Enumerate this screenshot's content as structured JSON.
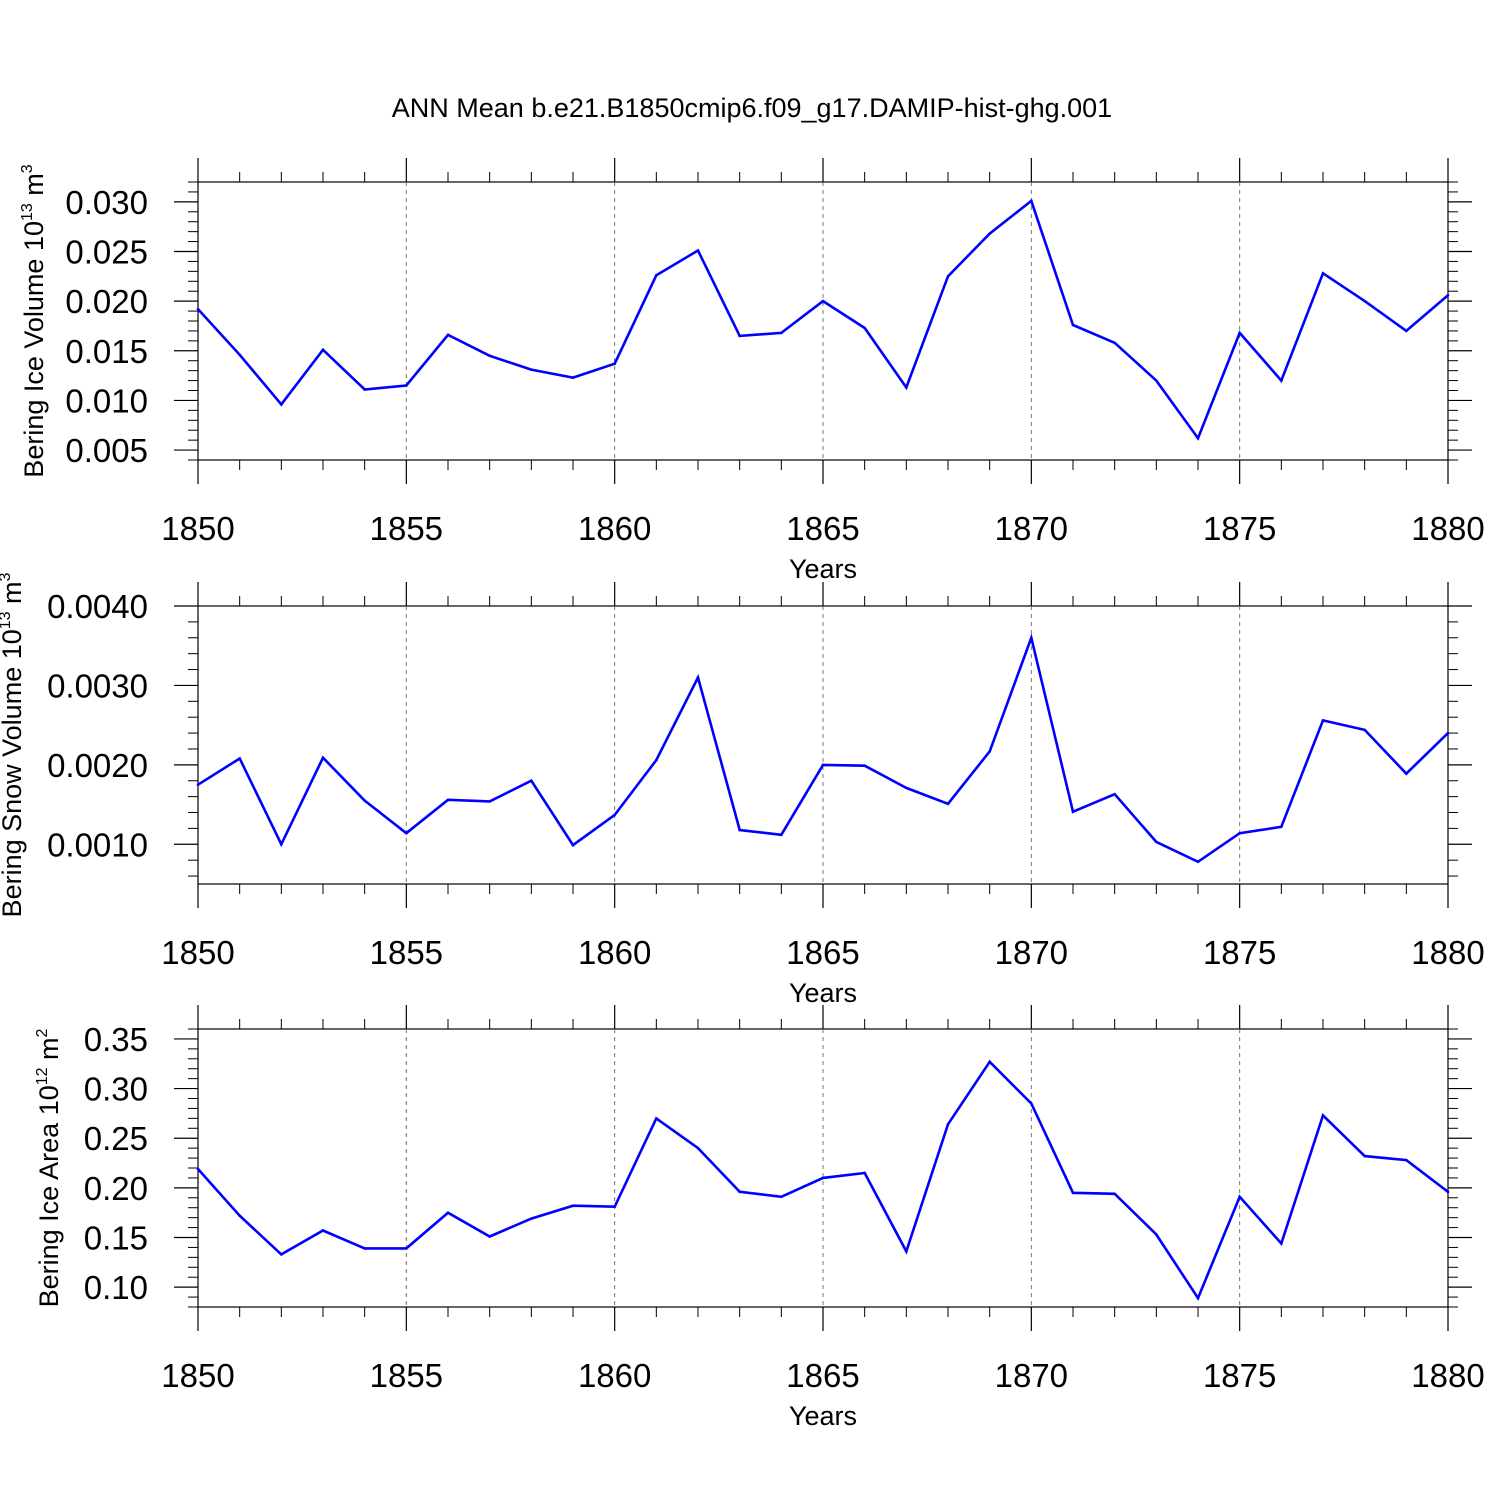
{
  "chart_title": "ANN Mean b.e21.B1850cmip6.f09_g17.DAMIP-hist-ghg.001",
  "chart_data": [
    {
      "type": "line",
      "title": "",
      "xlabel": "Years",
      "ylabel_main": "Bering Ice Volume 10",
      "ylabel_exp": "13",
      "ylabel_unit": " m",
      "ylabel_unit_exp": "3",
      "xlim": [
        1850,
        1880
      ],
      "ylim": [
        0.004,
        0.032
      ],
      "xticks": [
        1850,
        1855,
        1860,
        1865,
        1870,
        1875,
        1880
      ],
      "xtick_labels": [
        "1850",
        "1855",
        "1860",
        "1865",
        "1870",
        "1875",
        "1880"
      ],
      "yticks": [
        0.005,
        0.01,
        0.015,
        0.02,
        0.025,
        0.03
      ],
      "ytick_labels": [
        "0.005",
        "0.010",
        "0.015",
        "0.020",
        "0.025",
        "0.030"
      ],
      "grid": "x-dashed",
      "series": [
        {
          "name": "Bering Ice Volume",
          "color": "#0000ff",
          "x": [
            1850,
            1851,
            1852,
            1853,
            1854,
            1855,
            1856,
            1857,
            1858,
            1859,
            1860,
            1861,
            1862,
            1863,
            1864,
            1865,
            1866,
            1867,
            1868,
            1869,
            1870,
            1871,
            1872,
            1873,
            1874,
            1875,
            1876,
            1877,
            1878,
            1879,
            1880
          ],
          "values": [
            0.0192,
            0.0146,
            0.0096,
            0.0151,
            0.0111,
            0.0115,
            0.0166,
            0.0145,
            0.0131,
            0.0123,
            0.0137,
            0.0226,
            0.0251,
            0.0165,
            0.0168,
            0.02,
            0.0173,
            0.0113,
            0.0225,
            0.0268,
            0.0301,
            0.0176,
            0.0158,
            0.012,
            0.0062,
            0.0168,
            0.012,
            0.0228,
            0.02,
            0.017,
            0.0206
          ]
        }
      ]
    },
    {
      "type": "line",
      "title": "",
      "xlabel": "Years",
      "ylabel_main": "Bering Snow Volume 10",
      "ylabel_exp": "13",
      "ylabel_unit": " m",
      "ylabel_unit_exp": "3",
      "xlim": [
        1850,
        1880
      ],
      "ylim": [
        0.0005,
        0.004
      ],
      "xticks": [
        1850,
        1855,
        1860,
        1865,
        1870,
        1875,
        1880
      ],
      "xtick_labels": [
        "1850",
        "1855",
        "1860",
        "1865",
        "1870",
        "1875",
        "1880"
      ],
      "yticks": [
        0.001,
        0.002,
        0.003,
        0.004
      ],
      "ytick_labels": [
        "0.0010",
        "0.0020",
        "0.0030",
        "0.0040"
      ],
      "grid": "x-dashed",
      "series": [
        {
          "name": "Bering Snow Volume",
          "color": "#0000ff",
          "x": [
            1850,
            1851,
            1852,
            1853,
            1854,
            1855,
            1856,
            1857,
            1858,
            1859,
            1860,
            1861,
            1862,
            1863,
            1864,
            1865,
            1866,
            1867,
            1868,
            1869,
            1870,
            1871,
            1872,
            1873,
            1874,
            1875,
            1876,
            1877,
            1878,
            1879,
            1880
          ],
          "values": [
            0.00175,
            0.00208,
            0.001,
            0.00209,
            0.00155,
            0.00114,
            0.00156,
            0.00154,
            0.0018,
            0.00099,
            0.00137,
            0.00206,
            0.0031,
            0.00118,
            0.00112,
            0.002,
            0.00199,
            0.00171,
            0.00151,
            0.00217,
            0.0036,
            0.00141,
            0.00163,
            0.00103,
            0.00078,
            0.00114,
            0.00122,
            0.00256,
            0.00244,
            0.00189,
            0.0024
          ]
        }
      ]
    },
    {
      "type": "line",
      "title": "",
      "xlabel": "Years",
      "ylabel_main": "Bering Ice Area 10",
      "ylabel_exp": "12",
      "ylabel_unit": " m",
      "ylabel_unit_exp": "2",
      "xlim": [
        1850,
        1880
      ],
      "ylim": [
        0.08,
        0.36
      ],
      "xticks": [
        1850,
        1855,
        1860,
        1865,
        1870,
        1875,
        1880
      ],
      "xtick_labels": [
        "1850",
        "1855",
        "1860",
        "1865",
        "1870",
        "1875",
        "1880"
      ],
      "yticks": [
        0.1,
        0.15,
        0.2,
        0.25,
        0.3,
        0.35
      ],
      "ytick_labels": [
        "0.10",
        "0.15",
        "0.20",
        "0.25",
        "0.30",
        "0.35"
      ],
      "grid": "x-dashed",
      "series": [
        {
          "name": "Bering Ice Area",
          "color": "#0000ff",
          "x": [
            1850,
            1851,
            1852,
            1853,
            1854,
            1855,
            1856,
            1857,
            1858,
            1859,
            1860,
            1861,
            1862,
            1863,
            1864,
            1865,
            1866,
            1867,
            1868,
            1869,
            1870,
            1871,
            1872,
            1873,
            1874,
            1875,
            1876,
            1877,
            1878,
            1879,
            1880
          ],
          "values": [
            0.219,
            0.172,
            0.133,
            0.157,
            0.139,
            0.139,
            0.175,
            0.151,
            0.169,
            0.182,
            0.181,
            0.27,
            0.24,
            0.196,
            0.191,
            0.21,
            0.215,
            0.136,
            0.264,
            0.327,
            0.285,
            0.195,
            0.194,
            0.153,
            0.089,
            0.191,
            0.144,
            0.273,
            0.232,
            0.228,
            0.196
          ]
        }
      ]
    }
  ]
}
